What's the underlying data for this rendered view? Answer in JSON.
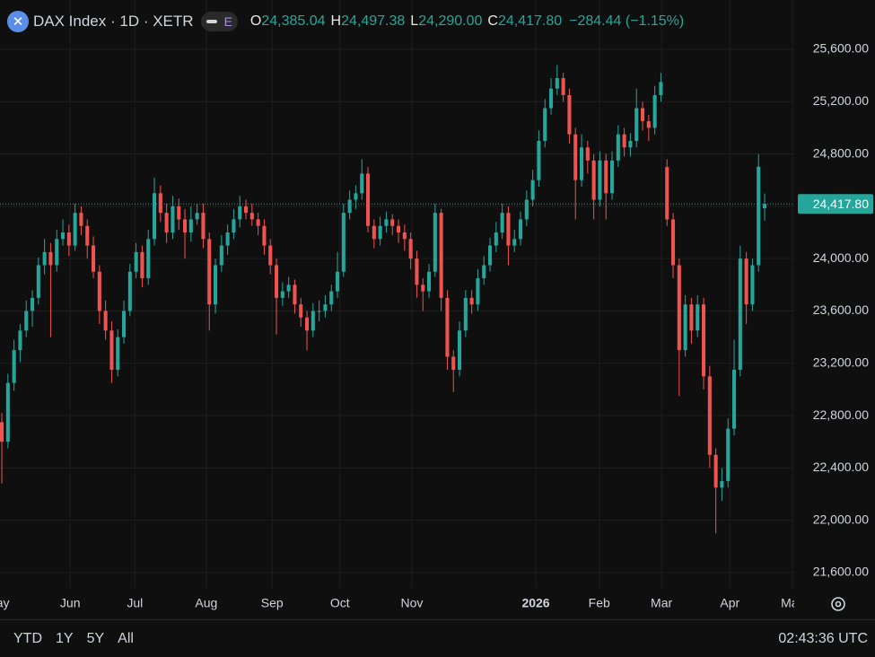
{
  "header": {
    "symbol": "DAX Index · 1D · XETR",
    "badge": "E",
    "open_label": "O",
    "open": "24,385.04",
    "high_label": "H",
    "high": "24,497.38",
    "low_label": "L",
    "low": "24,290.00",
    "close_label": "C",
    "close": "24,417.80",
    "change": "−284.44 (−1.15%)"
  },
  "chart_data": {
    "type": "candlestick",
    "up_color": "#26a69a",
    "down_color": "#ef5350",
    "ohlc": [
      [
        22750,
        22820,
        22280,
        22600
      ],
      [
        22600,
        23120,
        22550,
        23050
      ],
      [
        23050,
        23380,
        22990,
        23300
      ],
      [
        23300,
        23500,
        23210,
        23450
      ],
      [
        23450,
        23680,
        23400,
        23600
      ],
      [
        23600,
        23760,
        23480,
        23700
      ],
      [
        23700,
        24010,
        23650,
        23950
      ],
      [
        23950,
        24150,
        23880,
        24050
      ],
      [
        24050,
        24120,
        23400,
        23950
      ],
      [
        23950,
        24220,
        23900,
        24150
      ],
      [
        24150,
        24300,
        24100,
        24200
      ],
      [
        24200,
        24260,
        24020,
        24100
      ],
      [
        24100,
        24420,
        24060,
        24350
      ],
      [
        24350,
        24400,
        24180,
        24250
      ],
      [
        24250,
        24300,
        24000,
        24100
      ],
      [
        24100,
        24170,
        23850,
        23900
      ],
      [
        23900,
        23950,
        23500,
        23600
      ],
      [
        23600,
        23680,
        23380,
        23450
      ],
      [
        23450,
        23520,
        23050,
        23150
      ],
      [
        23150,
        23460,
        23100,
        23400
      ],
      [
        23400,
        23680,
        23350,
        23600
      ],
      [
        23600,
        23960,
        23560,
        23900
      ],
      [
        23900,
        24120,
        23850,
        24050
      ],
      [
        24050,
        24100,
        23780,
        23850
      ],
      [
        23850,
        24220,
        23800,
        24150
      ],
      [
        24150,
        24620,
        24100,
        24500
      ],
      [
        24500,
        24560,
        24280,
        24350
      ],
      [
        24350,
        24420,
        24120,
        24200
      ],
      [
        24200,
        24480,
        24150,
        24400
      ],
      [
        24400,
        24460,
        24220,
        24300
      ],
      [
        24300,
        24380,
        24000,
        24200
      ],
      [
        24200,
        24400,
        24130,
        24300
      ],
      [
        24300,
        24420,
        24260,
        24350
      ],
      [
        24350,
        24420,
        24080,
        24150
      ],
      [
        24150,
        24200,
        23450,
        23650
      ],
      [
        23650,
        24000,
        23580,
        23950
      ],
      [
        23950,
        24180,
        23900,
        24100
      ],
      [
        24100,
        24260,
        24030,
        24200
      ],
      [
        24200,
        24380,
        24150,
        24300
      ],
      [
        24300,
        24480,
        24240,
        24400
      ],
      [
        24400,
        24450,
        24300,
        24350
      ],
      [
        24350,
        24420,
        24250,
        24300
      ],
      [
        24300,
        24350,
        24180,
        24250
      ],
      [
        24250,
        24300,
        24030,
        24100
      ],
      [
        24100,
        24150,
        23880,
        23950
      ],
      [
        23950,
        24000,
        23420,
        23700
      ],
      [
        23700,
        23820,
        23640,
        23750
      ],
      [
        23750,
        23860,
        23700,
        23800
      ],
      [
        23800,
        23840,
        23580,
        23650
      ],
      [
        23650,
        23700,
        23480,
        23550
      ],
      [
        23550,
        23600,
        23300,
        23450
      ],
      [
        23450,
        23660,
        23400,
        23600
      ],
      [
        23600,
        23680,
        23520,
        23600
      ],
      [
        23600,
        23720,
        23550,
        23650
      ],
      [
        23650,
        23800,
        23600,
        23750
      ],
      [
        23750,
        24050,
        23700,
        23900
      ],
      [
        23900,
        24420,
        23860,
        24350
      ],
      [
        24350,
        24520,
        24300,
        24450
      ],
      [
        24450,
        24560,
        24380,
        24500
      ],
      [
        24500,
        24760,
        24450,
        24650
      ],
      [
        24650,
        24700,
        24200,
        24250
      ],
      [
        24250,
        24300,
        24080,
        24150
      ],
      [
        24150,
        24320,
        24100,
        24250
      ],
      [
        24250,
        24360,
        24200,
        24300
      ],
      [
        24300,
        24340,
        24180,
        24250
      ],
      [
        24250,
        24300,
        24120,
        24200
      ],
      [
        24200,
        24260,
        24060,
        24150
      ],
      [
        24150,
        24200,
        23920,
        24000
      ],
      [
        24000,
        24060,
        23700,
        23800
      ],
      [
        23800,
        23850,
        23600,
        23750
      ],
      [
        23750,
        23960,
        23700,
        23900
      ],
      [
        23900,
        24420,
        23860,
        24350
      ],
      [
        24350,
        24380,
        23600,
        23700
      ],
      [
        23700,
        23760,
        23150,
        23250
      ],
      [
        23250,
        23300,
        22980,
        23150
      ],
      [
        23150,
        23520,
        23100,
        23450
      ],
      [
        23450,
        23760,
        23400,
        23700
      ],
      [
        23700,
        23760,
        23580,
        23650
      ],
      [
        23650,
        23920,
        23600,
        23850
      ],
      [
        23850,
        24020,
        23800,
        23950
      ],
      [
        23950,
        24160,
        23900,
        24100
      ],
      [
        24100,
        24280,
        24050,
        24200
      ],
      [
        24200,
        24420,
        24150,
        24350
      ],
      [
        24350,
        24400,
        23950,
        24100
      ],
      [
        24100,
        24220,
        24050,
        24150
      ],
      [
        24150,
        24360,
        24100,
        24300
      ],
      [
        24300,
        24520,
        24250,
        24450
      ],
      [
        24450,
        24680,
        24400,
        24600
      ],
      [
        24600,
        24980,
        24550,
        24900
      ],
      [
        24900,
        25220,
        24850,
        25150
      ],
      [
        25150,
        25380,
        25100,
        25300
      ],
      [
        25300,
        25480,
        25250,
        25380
      ],
      [
        25380,
        25420,
        25200,
        25250
      ],
      [
        25250,
        25300,
        24880,
        24950
      ],
      [
        24950,
        25000,
        24300,
        24600
      ],
      [
        24600,
        24950,
        24550,
        24850
      ],
      [
        24850,
        24900,
        24650,
        24750
      ],
      [
        24750,
        24800,
        24300,
        24450
      ],
      [
        24450,
        24820,
        24400,
        24750
      ],
      [
        24750,
        24800,
        24300,
        24500
      ],
      [
        24500,
        24820,
        24450,
        24750
      ],
      [
        24750,
        25020,
        24700,
        24950
      ],
      [
        24950,
        25000,
        24780,
        24850
      ],
      [
        24850,
        24960,
        24780,
        24900
      ],
      [
        24900,
        25300,
        24850,
        25150
      ],
      [
        25150,
        25200,
        24980,
        25050
      ],
      [
        25050,
        25100,
        24900,
        25000
      ],
      [
        25000,
        25320,
        24950,
        25250
      ],
      [
        25250,
        25420,
        25200,
        25350
      ],
      [
        24700,
        24760,
        24250,
        24300
      ],
      [
        24300,
        24350,
        23850,
        23950
      ],
      [
        23950,
        24000,
        22950,
        23300
      ],
      [
        23300,
        23720,
        23250,
        23650
      ],
      [
        23650,
        23700,
        23350,
        23450
      ],
      [
        23450,
        23720,
        23400,
        23650
      ],
      [
        23650,
        23700,
        23000,
        23100
      ],
      [
        23100,
        23180,
        22400,
        22500
      ],
      [
        22500,
        22550,
        21900,
        22250
      ],
      [
        22250,
        22400,
        22150,
        22300
      ],
      [
        22300,
        22780,
        22250,
        22700
      ],
      [
        22700,
        23380,
        22650,
        23150
      ],
      [
        23150,
        24100,
        23100,
        24000
      ],
      [
        24000,
        24050,
        23500,
        23650
      ],
      [
        23650,
        24000,
        23600,
        23950
      ],
      [
        23950,
        24800,
        23900,
        24702.24
      ],
      [
        24385.04,
        24497.38,
        24290,
        24417.8
      ]
    ],
    "xlim": [
      -0.3,
      129.85
    ],
    "xticks": [
      {
        "value": -0.7,
        "label": "May"
      },
      {
        "value": 11.2,
        "label": "Jun"
      },
      {
        "value": 21.8,
        "label": "Jul"
      },
      {
        "value": 33.5,
        "label": "Aug"
      },
      {
        "value": 44.3,
        "label": "Sep"
      },
      {
        "value": 55.4,
        "label": "Oct"
      },
      {
        "value": 67.2,
        "label": "Nov"
      },
      {
        "value": 87.5,
        "label": "2026"
      },
      {
        "value": 97.9,
        "label": "Feb"
      },
      {
        "value": 108.1,
        "label": "Mar"
      },
      {
        "value": 119.3,
        "label": "Apr"
      },
      {
        "value": 129.6,
        "label": "May"
      }
    ],
    "ylim": [
      21483,
      25977
    ],
    "yticks": [
      {
        "value": 21600,
        "label": "21,600.00"
      },
      {
        "value": 22000,
        "label": "22,000.00"
      },
      {
        "value": 22400,
        "label": "22,400.00"
      },
      {
        "value": 22800,
        "label": "22,800.00"
      },
      {
        "value": 23200,
        "label": "23,200.00"
      },
      {
        "value": 23600,
        "label": "23,600.00"
      },
      {
        "value": 24000,
        "label": "24,000.00"
      },
      {
        "value": 24400,
        "label": "24,400.00"
      },
      {
        "value": 24800,
        "label": "24,800.00"
      },
      {
        "value": 25200,
        "label": "25,200.00"
      },
      {
        "value": 25600,
        "label": "25,600.00"
      }
    ],
    "grid": true,
    "last_price": {
      "value": 24417.8,
      "label": "24,417.80"
    }
  },
  "footer": {
    "ranges": [
      "YTD",
      "1Y",
      "5Y",
      "All"
    ],
    "clock": "02:43:36 UTC"
  }
}
